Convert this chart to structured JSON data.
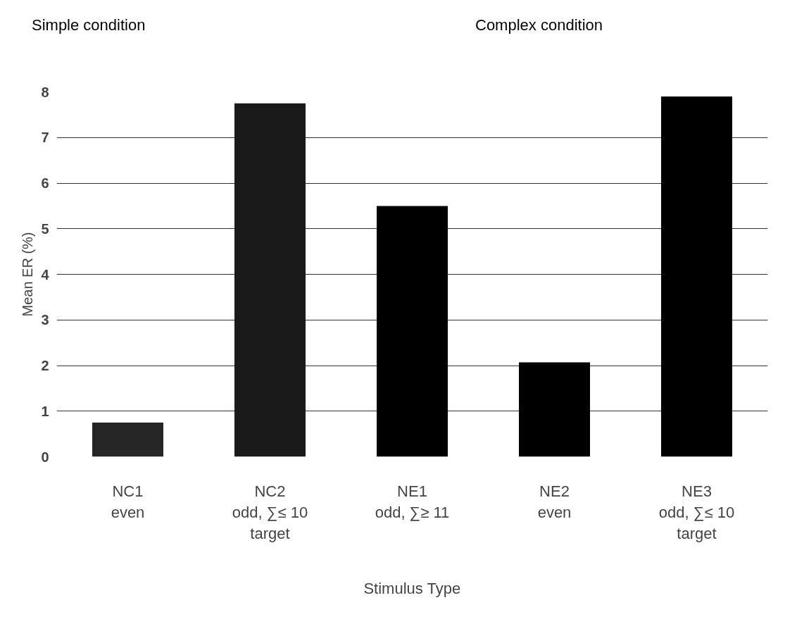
{
  "chart_data": {
    "type": "bar",
    "categories": [
      "NC1\neven",
      "NC2\nodd, ∑≤ 10\ntarget",
      "NE1\nodd, ∑≥ 11",
      "NE2\neven",
      "NE3\nodd, ∑≤ 10\ntarget"
    ],
    "values": [
      0.75,
      7.75,
      5.5,
      2.07,
      7.9
    ],
    "colors": [
      "#262626",
      "#1a1a1a",
      "#000000",
      "#000000",
      "#000000"
    ],
    "xlabel": "Stimulus Type",
    "ylabel": "Mean ER (%)",
    "annotations": [
      "Simple condition",
      "Complex condition"
    ],
    "ylim": [
      0,
      8
    ],
    "yticks": [
      0,
      1,
      2,
      3,
      4,
      5,
      6,
      7,
      8
    ],
    "grid": "y"
  }
}
